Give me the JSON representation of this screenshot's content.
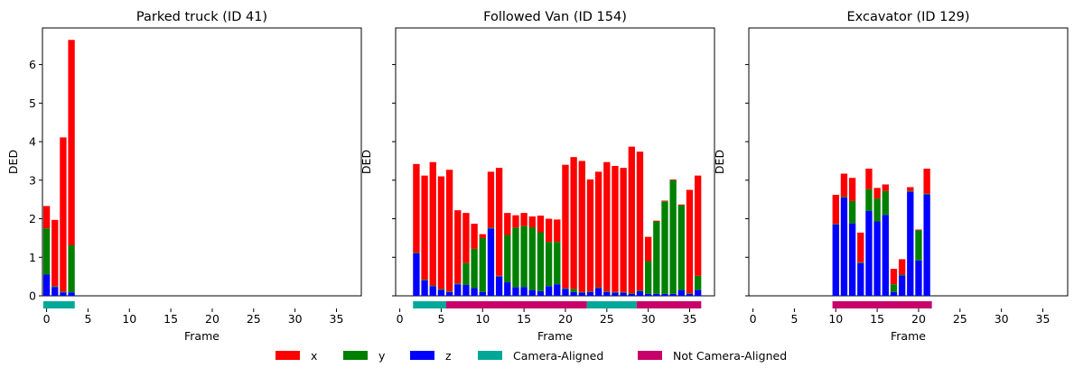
{
  "colors": {
    "x": "#ff0000",
    "y": "#008000",
    "z": "#0000ff",
    "aligned": "#00a898",
    "not_aligned": "#c8006a"
  },
  "legend": {
    "placement": "bottom-center",
    "items": [
      {
        "label": "x",
        "color": "#ff0000"
      },
      {
        "label": "y",
        "color": "#008000"
      },
      {
        "label": "z",
        "color": "#0000ff"
      },
      {
        "label": "Camera-Aligned",
        "color": "#00a898"
      },
      {
        "label": "Not Camera-Aligned",
        "color": "#c8006a"
      }
    ]
  },
  "chart_data": [
    {
      "type": "bar",
      "stacked": true,
      "stack_order": [
        "z",
        "y",
        "x"
      ],
      "title": "Parked truck (ID 41)",
      "xlabel": "Frame",
      "ylabel": "DED",
      "xlim": [
        -0.5,
        38
      ],
      "ylim": [
        0,
        6.95
      ],
      "xticks": [
        0,
        5,
        10,
        15,
        20,
        25,
        30,
        35
      ],
      "yticks": [
        0,
        1,
        2,
        3,
        4,
        5,
        6
      ],
      "show_ytick_labels": true,
      "frames": [
        0,
        1,
        2,
        3
      ],
      "series": [
        {
          "name": "x",
          "values": [
            0.58,
            1.72,
            4.0,
            5.33
          ]
        },
        {
          "name": "y",
          "values": [
            1.2,
            0.02,
            0.02,
            1.22
          ]
        },
        {
          "name": "z",
          "values": [
            0.55,
            0.23,
            0.09,
            0.09
          ]
        }
      ],
      "alignment_segments": [
        {
          "start": -0.4,
          "end": 3.4,
          "status": "aligned"
        }
      ]
    },
    {
      "type": "bar",
      "stacked": true,
      "stack_order": [
        "z",
        "y",
        "x"
      ],
      "title": "Followed Van (ID 154)",
      "xlabel": "Frame",
      "ylabel": "DED",
      "xlim": [
        -0.5,
        38
      ],
      "ylim": [
        0,
        6.95
      ],
      "xticks": [
        0,
        5,
        10,
        15,
        20,
        25,
        30,
        35
      ],
      "yticks": [
        0,
        1,
        2,
        3,
        4,
        5,
        6
      ],
      "show_ytick_labels": false,
      "frames": [
        2,
        3,
        4,
        5,
        6,
        7,
        8,
        9,
        10,
        11,
        12,
        13,
        14,
        15,
        16,
        17,
        18,
        19,
        20,
        21,
        22,
        23,
        24,
        25,
        26,
        27,
        28,
        29,
        30,
        31,
        32,
        33,
        34,
        35,
        36
      ],
      "series": [
        {
          "name": "x",
          "values": [
            2.3,
            2.7,
            3.2,
            2.92,
            3.15,
            1.9,
            1.3,
            0.65,
            0.1,
            1.45,
            2.8,
            0.57,
            0.32,
            0.34,
            0.28,
            0.43,
            0.6,
            0.58,
            3.2,
            3.42,
            3.4,
            2.9,
            3.0,
            3.35,
            3.27,
            3.22,
            3.8,
            3.6,
            0.63,
            0.02,
            0.02,
            0.02,
            0.02,
            2.68,
            2.6
          ]
        },
        {
          "name": "y",
          "values": [
            0.02,
            0.02,
            0.02,
            0.02,
            0.02,
            0.02,
            0.57,
            1.02,
            1.4,
            0.02,
            0.02,
            1.23,
            1.55,
            1.58,
            1.63,
            1.53,
            1.15,
            1.1,
            0.02,
            0.08,
            0.02,
            0.02,
            0.02,
            0.02,
            0.02,
            0.02,
            0.02,
            0.02,
            0.85,
            1.88,
            2.4,
            2.95,
            2.2,
            0.02,
            0.37
          ]
        },
        {
          "name": "z",
          "values": [
            1.1,
            0.4,
            0.25,
            0.16,
            0.1,
            0.3,
            0.28,
            0.2,
            0.1,
            1.75,
            0.5,
            0.35,
            0.22,
            0.23,
            0.15,
            0.12,
            0.25,
            0.3,
            0.18,
            0.1,
            0.08,
            0.1,
            0.2,
            0.1,
            0.08,
            0.08,
            0.05,
            0.12,
            0.05,
            0.05,
            0.05,
            0.05,
            0.15,
            0.05,
            0.15
          ]
        }
      ],
      "alignment_segments": [
        {
          "start": 1.6,
          "end": 5.6,
          "status": "aligned"
        },
        {
          "start": 5.6,
          "end": 22.6,
          "status": "not_aligned"
        },
        {
          "start": 22.6,
          "end": 28.6,
          "status": "aligned"
        },
        {
          "start": 28.6,
          "end": 36.4,
          "status": "not_aligned"
        }
      ]
    },
    {
      "type": "bar",
      "stacked": true,
      "stack_order": [
        "z",
        "y",
        "x"
      ],
      "title": "Excavator (ID 129)",
      "xlabel": "Frame",
      "ylabel": "DED",
      "xlim": [
        -0.5,
        38
      ],
      "ylim": [
        0,
        6.95
      ],
      "xticks": [
        0,
        5,
        10,
        15,
        20,
        25,
        30,
        35
      ],
      "yticks": [
        0,
        1,
        2,
        3,
        4,
        5,
        6
      ],
      "show_ytick_labels": false,
      "frames": [
        10,
        11,
        12,
        13,
        14,
        15,
        16,
        17,
        18,
        19,
        20,
        21
      ],
      "series": [
        {
          "name": "x",
          "values": [
            0.75,
            0.6,
            0.6,
            0.77,
            0.53,
            0.27,
            0.17,
            0.4,
            0.4,
            0.1,
            0.02,
            0.65
          ]
        },
        {
          "name": "y",
          "values": [
            0.02,
            0.02,
            0.58,
            0.02,
            0.57,
            0.6,
            0.62,
            0.2,
            0.02,
            0.02,
            0.78,
            0.02
          ]
        },
        {
          "name": "z",
          "values": [
            1.85,
            2.55,
            1.88,
            0.85,
            2.2,
            1.93,
            2.1,
            0.1,
            0.53,
            2.7,
            0.92,
            2.63
          ]
        }
      ],
      "alignment_segments": [
        {
          "start": 9.6,
          "end": 21.6,
          "status": "not_aligned"
        }
      ]
    }
  ]
}
